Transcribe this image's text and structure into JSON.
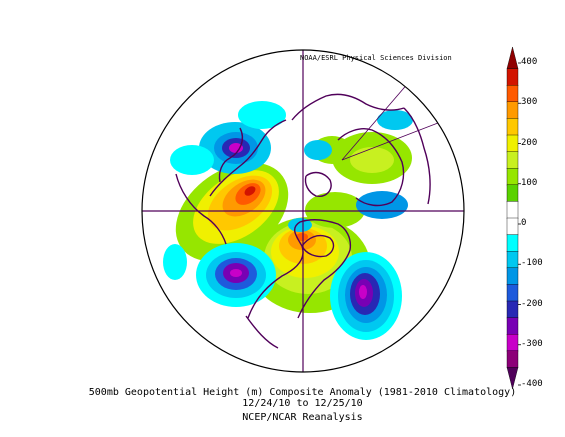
{
  "map": {
    "credit": "NOAA/ESRL Physical Sciences Division",
    "caption_line1": "500mb Geopotential Height (m) Composite Anomaly (1981-2010 Climatology)",
    "caption_line2": "12/24/10  to 12/25/10",
    "caption_line3": "NCEP/NCAR Reanalysis",
    "projection": "north-polar-stereographic",
    "anomalies": [
      {
        "region": "western-north-america",
        "sign": "positive",
        "peak": 300
      },
      {
        "region": "northwest-of-hudson-bay",
        "sign": "positive",
        "peak": 250
      },
      {
        "region": "greenland",
        "sign": "positive",
        "peak": 150
      },
      {
        "region": "east-asia",
        "sign": "positive",
        "peak": 100
      },
      {
        "region": "bering-aleutians",
        "sign": "negative",
        "peak": -300
      },
      {
        "region": "eastern-north-atlantic",
        "sign": "negative",
        "peak": -300
      },
      {
        "region": "north-pacific",
        "sign": "negative",
        "peak": -300
      }
    ]
  },
  "colorbar": {
    "labels": [
      "400",
      "300",
      "200",
      "100",
      "0",
      "-100",
      "-200",
      "-300",
      "-400"
    ],
    "colors": [
      "#8f0000",
      "#d21400",
      "#ff5a00",
      "#ff9a00",
      "#ffc800",
      "#f0f000",
      "#c8f020",
      "#96e600",
      "#5ad200",
      "#ffffff",
      "#ffffff",
      "#00ffff",
      "#00c8f0",
      "#0096e6",
      "#1e5adc",
      "#2828b4",
      "#7800b4",
      "#c800c8",
      "#8c0078",
      "#50005a"
    ]
  }
}
